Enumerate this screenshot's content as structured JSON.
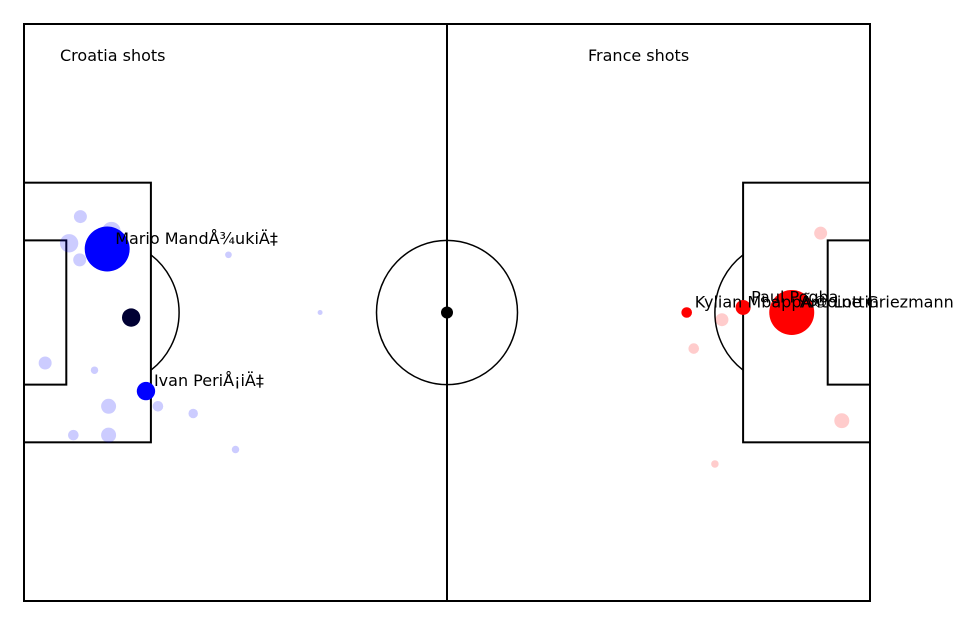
{
  "chart_data": {
    "type": "scatter",
    "xlim": [
      0,
      120
    ],
    "ylim": [
      0,
      80
    ],
    "grid": false,
    "teams": [
      {
        "name": "Croatia",
        "title": "Croatia shots",
        "color": "#0000ff",
        "shots": [
          {
            "x": 11.8,
            "y": 31.2,
            "xg": 0.18,
            "goal": true,
            "player": "Mario MandÅ¾ukiÄ‡"
          },
          {
            "x": 15.2,
            "y": 40.7,
            "xg": 0.03,
            "goal": true,
            "player": ""
          },
          {
            "x": 17.3,
            "y": 50.9,
            "xg": 0.03,
            "goal": true,
            "player": "Ivan PeriÅ¡iÄ‡"
          },
          {
            "x": 6.4,
            "y": 30.4,
            "xg": 0.03,
            "goal": false,
            "player": ""
          },
          {
            "x": 7.9,
            "y": 32.7,
            "xg": 0.015,
            "goal": false,
            "player": ""
          },
          {
            "x": 12.4,
            "y": 28.7,
            "xg": 0.03,
            "goal": false,
            "player": ""
          },
          {
            "x": 8.0,
            "y": 26.7,
            "xg": 0.015,
            "goal": false,
            "player": ""
          },
          {
            "x": 3.0,
            "y": 47.0,
            "xg": 0.015,
            "goal": false,
            "player": ""
          },
          {
            "x": 10.0,
            "y": 48.0,
            "xg": 0.005,
            "goal": false,
            "player": ""
          },
          {
            "x": 12.0,
            "y": 53.0,
            "xg": 0.02,
            "goal": false,
            "player": ""
          },
          {
            "x": 12.0,
            "y": 57.0,
            "xg": 0.02,
            "goal": false,
            "player": ""
          },
          {
            "x": 7.0,
            "y": 57.0,
            "xg": 0.01,
            "goal": false,
            "player": ""
          },
          {
            "x": 19.0,
            "y": 53.0,
            "xg": 0.01,
            "goal": false,
            "player": ""
          },
          {
            "x": 24.0,
            "y": 54.0,
            "xg": 0.008,
            "goal": false,
            "player": ""
          },
          {
            "x": 29.0,
            "y": 32.0,
            "xg": 0.004,
            "goal": false,
            "player": ""
          },
          {
            "x": 30.0,
            "y": 59.0,
            "xg": 0.005,
            "goal": false,
            "player": ""
          },
          {
            "x": 42.0,
            "y": 40.0,
            "xg": 0.002,
            "goal": false,
            "player": ""
          }
        ]
      },
      {
        "name": "France",
        "title": "France shots",
        "color": "#ff0000",
        "shots": [
          {
            "x": 108.9,
            "y": 40.0,
            "xg": 0.18,
            "goal": true,
            "player": "Antoine Griezmann"
          },
          {
            "x": 102.0,
            "y": 39.3,
            "xg": 0.02,
            "goal": true,
            "player": "Paul Pogba"
          },
          {
            "x": 94.0,
            "y": 40.0,
            "xg": 0.01,
            "goal": true,
            "player": "Kylian MbappÃ© Lottin"
          },
          {
            "x": 113.0,
            "y": 29.0,
            "xg": 0.015,
            "goal": false,
            "player": ""
          },
          {
            "x": 116.0,
            "y": 55.0,
            "xg": 0.02,
            "goal": false,
            "player": ""
          },
          {
            "x": 99.0,
            "y": 41.0,
            "xg": 0.015,
            "goal": false,
            "player": ""
          },
          {
            "x": 95.0,
            "y": 45.0,
            "xg": 0.01,
            "goal": false,
            "player": ""
          },
          {
            "x": 98.0,
            "y": 61.0,
            "xg": 0.005,
            "goal": false,
            "player": ""
          }
        ]
      }
    ]
  }
}
